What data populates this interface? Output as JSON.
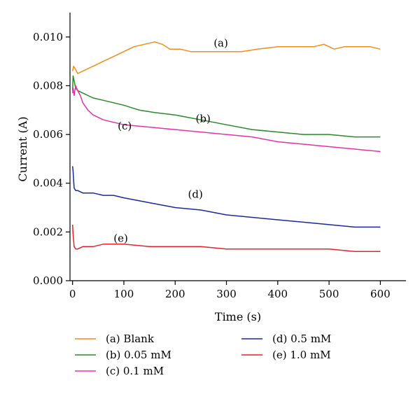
{
  "chart_data": {
    "type": "line",
    "xlabel": "Time (s)",
    "ylabel": "Current (A)",
    "xlim": [
      -5,
      650
    ],
    "ylim": [
      0,
      0.011
    ],
    "x_ticks": [
      0,
      100,
      200,
      300,
      400,
      500,
      600
    ],
    "x_tick_labels": [
      "0",
      "100",
      "200",
      "300",
      "400",
      "500",
      "600"
    ],
    "y_ticks": [
      0,
      0.002,
      0.004,
      0.006,
      0.008,
      0.01
    ],
    "y_tick_labels": [
      "0.000",
      "0.002",
      "0.004",
      "0.006",
      "0.008",
      "0.010"
    ],
    "legend_position": "bottom",
    "series": [
      {
        "name": "(a) Blank",
        "tag": "(a)",
        "tag_at": [
          275,
          0.0096
        ],
        "color": "#f28c1c",
        "x": [
          0,
          2,
          5,
          10,
          20,
          40,
          60,
          80,
          100,
          120,
          140,
          160,
          175,
          190,
          210,
          230,
          250,
          270,
          300,
          330,
          360,
          400,
          440,
          470,
          490,
          500,
          510,
          530,
          560,
          580,
          600
        ],
        "y": [
          0.0086,
          0.0088,
          0.0087,
          0.0085,
          0.0086,
          0.0088,
          0.009,
          0.0092,
          0.0094,
          0.0096,
          0.0097,
          0.0098,
          0.0097,
          0.0095,
          0.0095,
          0.0094,
          0.0094,
          0.0094,
          0.0094,
          0.0094,
          0.0095,
          0.0096,
          0.0096,
          0.0096,
          0.0097,
          0.0096,
          0.0095,
          0.0096,
          0.0096,
          0.0096,
          0.0095
        ]
      },
      {
        "name": "(b) 0.05 mM",
        "tag": "(b)",
        "tag_at": [
          240,
          0.0065
        ],
        "color": "#2a8a2a",
        "x": [
          0,
          1,
          3,
          6,
          10,
          20,
          40,
          60,
          80,
          100,
          130,
          160,
          200,
          250,
          300,
          350,
          400,
          450,
          500,
          550,
          600
        ],
        "y": [
          0.0078,
          0.0084,
          0.0082,
          0.0079,
          0.0078,
          0.0077,
          0.0075,
          0.0074,
          0.0073,
          0.0072,
          0.007,
          0.0069,
          0.0068,
          0.0066,
          0.0064,
          0.0062,
          0.0061,
          0.006,
          0.006,
          0.0059,
          0.0059
        ]
      },
      {
        "name": "(c) 0.1 mM",
        "tag": "(c)",
        "tag_at": [
          88,
          0.0062
        ],
        "color": "#e632a8",
        "x": [
          0,
          1,
          3,
          6,
          10,
          15,
          20,
          30,
          40,
          60,
          80,
          100,
          150,
          200,
          250,
          300,
          350,
          400,
          450,
          500,
          550,
          600
        ],
        "y": [
          0.0077,
          0.0079,
          0.0076,
          0.008,
          0.0078,
          0.0076,
          0.0073,
          0.007,
          0.0068,
          0.0066,
          0.0065,
          0.0064,
          0.0063,
          0.0062,
          0.0061,
          0.006,
          0.0059,
          0.0057,
          0.0056,
          0.0055,
          0.0054,
          0.0053
        ]
      },
      {
        "name": "(d) 0.5 mM",
        "tag": "(d)",
        "tag_at": [
          225,
          0.0034
        ],
        "color": "#1a2a9a",
        "x": [
          0,
          1,
          3,
          6,
          10,
          20,
          40,
          60,
          80,
          100,
          150,
          200,
          250,
          300,
          350,
          400,
          450,
          500,
          550,
          600
        ],
        "y": [
          0.0047,
          0.0045,
          0.0038,
          0.0037,
          0.0037,
          0.0036,
          0.0036,
          0.0035,
          0.0035,
          0.0034,
          0.0032,
          0.003,
          0.0029,
          0.0027,
          0.0026,
          0.0025,
          0.0024,
          0.0023,
          0.0022,
          0.0022
        ]
      },
      {
        "name": "(e) 1.0 mM",
        "tag": "(e)",
        "tag_at": [
          80,
          0.0016
        ],
        "color": "#e3242b",
        "x": [
          0,
          1,
          3,
          6,
          10,
          20,
          40,
          60,
          80,
          100,
          150,
          200,
          250,
          300,
          350,
          400,
          450,
          500,
          550,
          600
        ],
        "y": [
          0.0023,
          0.0019,
          0.0014,
          0.0013,
          0.0013,
          0.0014,
          0.0014,
          0.0015,
          0.0015,
          0.0015,
          0.0014,
          0.0014,
          0.0014,
          0.0013,
          0.0013,
          0.0013,
          0.0013,
          0.0013,
          0.0012,
          0.0012
        ]
      }
    ]
  }
}
